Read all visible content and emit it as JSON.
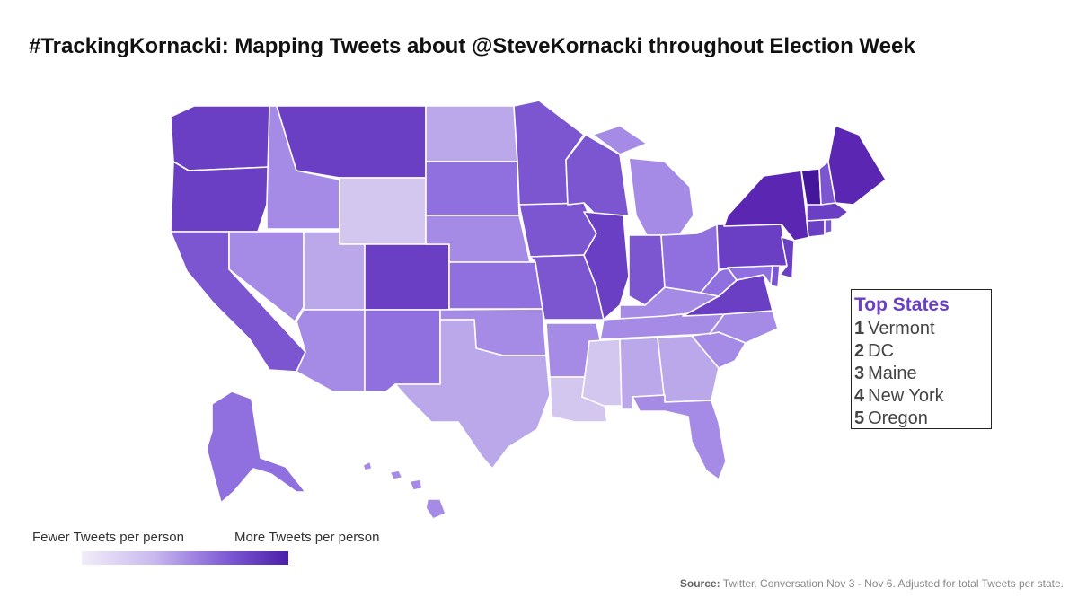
{
  "title": "#TrackingKornacki: Mapping Tweets about @SteveKornacki throughout Election Week",
  "colors": {
    "level1": "#d3c7ef",
    "level2": "#bba8ea",
    "level3": "#a58be6",
    "level4": "#9070df",
    "level5": "#7c55d0",
    "level6": "#6a3fc4",
    "level7": "#5a26b2",
    "level8": "#44169a"
  },
  "top_states": {
    "heading": "Top States",
    "items": [
      {
        "rank": "1",
        "name": "Vermont"
      },
      {
        "rank": "2",
        "name": "DC"
      },
      {
        "rank": "3",
        "name": "Maine"
      },
      {
        "rank": "4",
        "name": "New York"
      },
      {
        "rank": "5",
        "name": "Oregon"
      }
    ]
  },
  "legend": {
    "low_label": "Fewer Tweets per person",
    "high_label": "More Tweets per person"
  },
  "source": {
    "label": "Source:",
    "text": "Twitter. Conversation Nov 3 - Nov 6. Adjusted for total Tweets per state."
  }
}
